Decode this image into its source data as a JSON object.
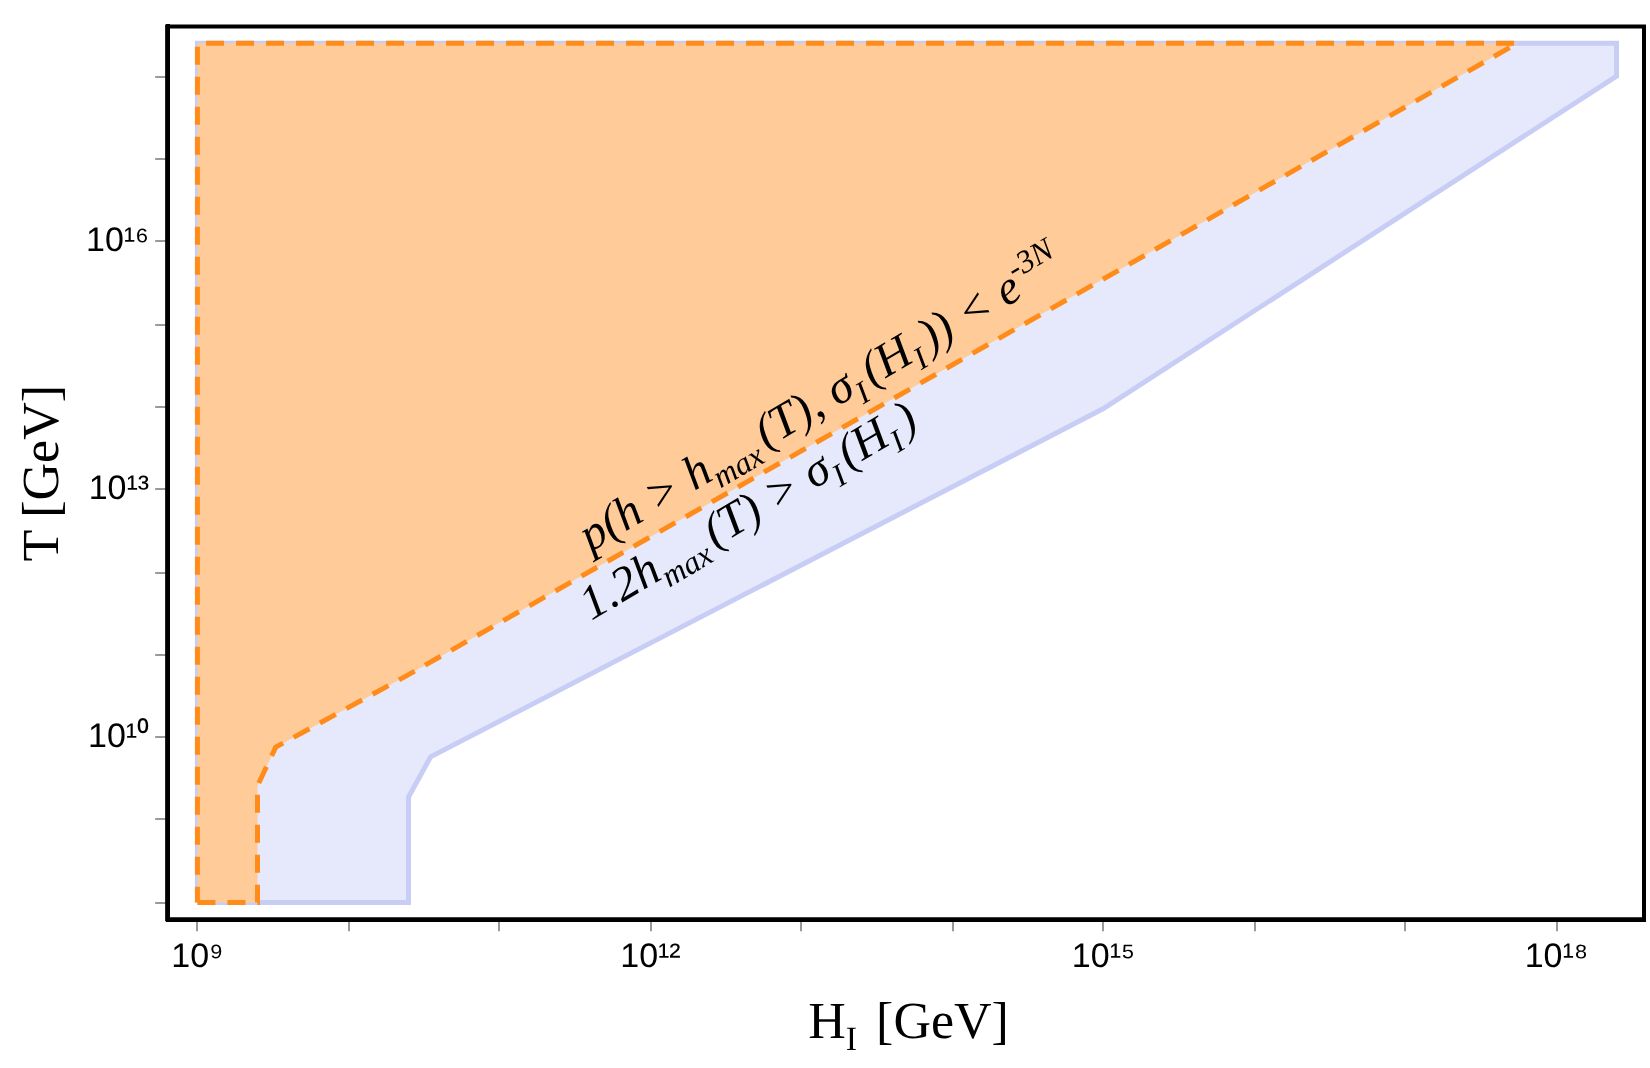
{
  "chart_data": {
    "type": "area",
    "xlabel": "H$_{I}$ [GeV]",
    "ylabel": "T [GeV]",
    "log": "xy",
    "grid": false,
    "legend": false,
    "xlim": [
      630000000.0,
      3.8e+18
    ],
    "ylim": [
      63000000.0,
      4e+18
    ],
    "xticks": [
      {
        "value": 1000000000.0,
        "label": "10⁹"
      },
      {
        "value": 10000000000.0,
        "label": null
      },
      {
        "value": 100000000000.0,
        "label": null
      },
      {
        "value": 1000000000000.0,
        "label": "10¹²"
      },
      {
        "value": 10000000000000.0,
        "label": null
      },
      {
        "value": 100000000000000.0,
        "label": null
      },
      {
        "value": 1000000000000000.0,
        "label": "10¹⁵"
      },
      {
        "value": 1e+16,
        "label": null
      },
      {
        "value": 1e+17,
        "label": null
      },
      {
        "value": 1e+18,
        "label": "10¹⁸"
      }
    ],
    "yticks": [
      {
        "value": 100000000.0,
        "label": null
      },
      {
        "value": 1000000000.0,
        "label": null
      },
      {
        "value": 10000000000.0,
        "label": "10¹⁰"
      },
      {
        "value": 100000000000.0,
        "label": null
      },
      {
        "value": 1000000000000.0,
        "label": null
      },
      {
        "value": 10000000000000.0,
        "label": "10¹³"
      },
      {
        "value": 100000000000000.0,
        "label": null
      },
      {
        "value": 1000000000000000.0,
        "label": null
      },
      {
        "value": 1e+16,
        "label": "10¹⁶"
      },
      {
        "value": 1e+17,
        "label": null
      },
      {
        "value": 1e+18,
        "label": null
      }
    ],
    "series": [
      {
        "color": "#c8cdf5",
        "line_style": "solid",
        "x": [
          1000000000.0,
          25000000000.0,
          25000000000.0,
          35000000000.0,
          1000000000000000.0,
          2.5e+18,
          2.5e+18,
          1000000000.0,
          1000000000.0
        ],
        "values": [
          100000000.0,
          100000000.0,
          1900000000.0,
          5800000000.0,
          95000000000000.0,
          1e+18,
          2.5e+18,
          2.5e+18,
          100000000.0
        ]
      },
      {
        "color": "#ff8c1a",
        "line_style": "dashed",
        "x": [
          1000000000.0,
          2500000000.0,
          2500000000.0,
          3300000000.0,
          24000000000.0,
          5.5e+17,
          1000000000.0,
          1000000000.0
        ],
        "values": [
          100000000.0,
          100000000.0,
          2600000000.0,
          7600000000.0,
          55000000000.0,
          2.5e+18,
          2.5e+18,
          100000000.0
        ]
      }
    ],
    "annotations": [
      "p(h > h$_{max}$(T), σ$_{I}$(H$_{I}$)) < e$^{-3N}$",
      "1.2h$_{max}$(T) > σ$_{I}$(H$_{I}$)"
    ]
  }
}
